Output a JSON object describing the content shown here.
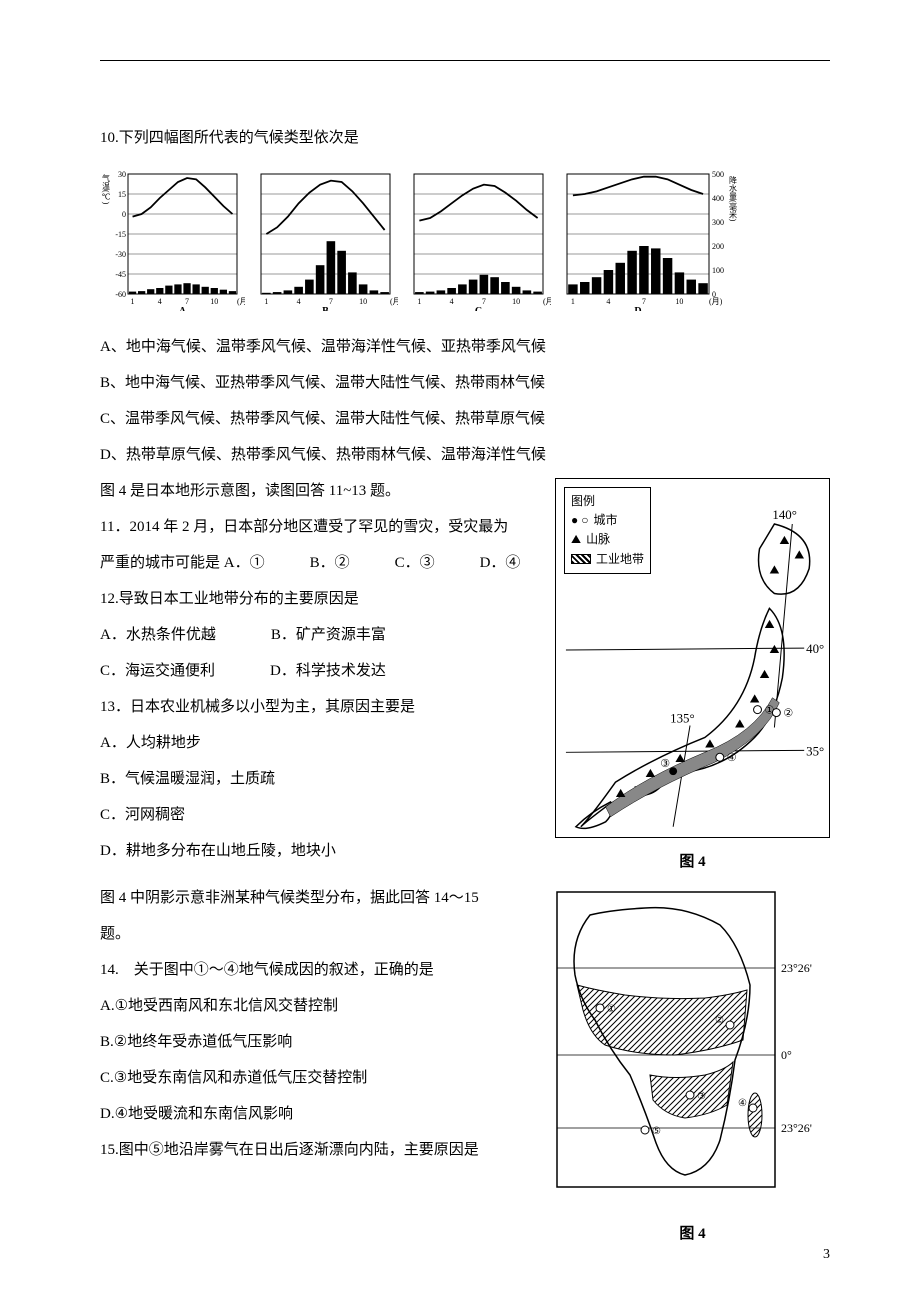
{
  "topLine": true,
  "q10": {
    "prompt": "10.下列四幅图所代表的气候类型依次是",
    "optA": "A、地中海气候、温带季风气候、温带海洋性气候、亚热带季风气候",
    "optB": "B、地中海气候、亚热带季风气候、温带大陆性气候、热带雨林气候",
    "optC": "C、温带季风气候、热带季风气候、温带大陆性气候、热带草原气候",
    "optD": "D、热带草原气候、热带季风气候、热带雨林气候、温带海洋性气候"
  },
  "charts": {
    "leftAxisUnit": "气温(℃)",
    "rightAxisUnit": "降水量(毫米)",
    "leftTicks": [
      "30",
      "15",
      "0",
      "-15",
      "-30",
      "-45",
      "-60"
    ],
    "rightTicks": [
      "500",
      "400",
      "300",
      "200",
      "100",
      "0"
    ],
    "xLabel": "10(月)",
    "xTicks": [
      "1",
      "4",
      "7",
      "10"
    ],
    "labels": [
      "A",
      "B",
      "C",
      "D"
    ],
    "tempCurves": {
      "A": [
        -2,
        0,
        5,
        12,
        18,
        24,
        27,
        26,
        20,
        13,
        6,
        0
      ],
      "B": [
        -15,
        -10,
        -2,
        8,
        16,
        22,
        25,
        24,
        17,
        8,
        -2,
        -12
      ],
      "C": [
        -5,
        -3,
        2,
        8,
        14,
        19,
        22,
        21,
        16,
        10,
        3,
        -3
      ],
      "D": [
        14,
        15,
        17,
        20,
        23,
        26,
        28,
        28,
        26,
        22,
        18,
        15
      ]
    },
    "precipBars": {
      "A": [
        10,
        12,
        20,
        25,
        35,
        40,
        45,
        40,
        30,
        25,
        18,
        12
      ],
      "B": [
        5,
        8,
        15,
        30,
        60,
        120,
        220,
        180,
        90,
        40,
        15,
        8
      ],
      "C": [
        8,
        10,
        15,
        25,
        40,
        60,
        80,
        70,
        50,
        30,
        15,
        10
      ],
      "D": [
        40,
        50,
        70,
        100,
        130,
        180,
        200,
        190,
        150,
        90,
        60,
        45
      ]
    },
    "tempRange": [
      -60,
      30
    ],
    "precipRange": [
      0,
      500
    ],
    "lineColor": "#000000",
    "barColor": "#000000",
    "bgColor": "#ffffff"
  },
  "japanIntro": "图 4 是日本地形示意图，读图回答 11~13 题。",
  "q11": {
    "prompt": "11．2014 年 2 月，日本部分地区遭受了罕见的雪灾，受灾最为",
    "prompt2": "严重的城市可能是 A．①　　　B．②　　　C．③　　　D．④"
  },
  "q12": {
    "prompt": "12.导致日本工业地带分布的主要原因是",
    "optA": "A．水热条件优越",
    "optB": "B．矿产资源丰富",
    "optC": "C．海运交通便利",
    "optD": "D．科学技术发达"
  },
  "q13": {
    "prompt": "13．日本农业机械多以小型为主，其原因主要是",
    "optA": "A．人均耕地步",
    "optB": "B．气候温暖湿润，土质疏",
    "optC": "C．河网稠密",
    "optD": "D．耕地多分布在山地丘陵，地块小"
  },
  "japanMap": {
    "legendTitle": "图例",
    "legendCity": "城市",
    "legendMountain": "山脉",
    "legendIndustry": "工业地带",
    "lon135": "135°",
    "lon140": "140°",
    "lat35": "35°",
    "lat40": "40°",
    "caption": "图 4"
  },
  "africaIntro": "图 4 中阴影示意非洲某种气候类型分布，据此回答 14～15",
  "africaIntro2": "题。",
  "q14": {
    "prompt": "14.　关于图中①～④地气候成因的叙述，正确的是",
    "optA": "A.①地受西南风和东北信风交替控制",
    "optB": "B.②地终年受赤道低气压影响",
    "optC": "C.③地受东南信风和赤道低气压交替控制",
    "optD": "D.④地受暖流和东南信风影响"
  },
  "q15": {
    "prompt": "15.图中⑤地沿岸雾气在日出后逐渐漂向内陆，主要原因是"
  },
  "africaMap": {
    "lat1": "23°26'",
    "lat2": "0°",
    "lat3": "23°26'",
    "caption": "图 4"
  },
  "pageNumber": "3"
}
